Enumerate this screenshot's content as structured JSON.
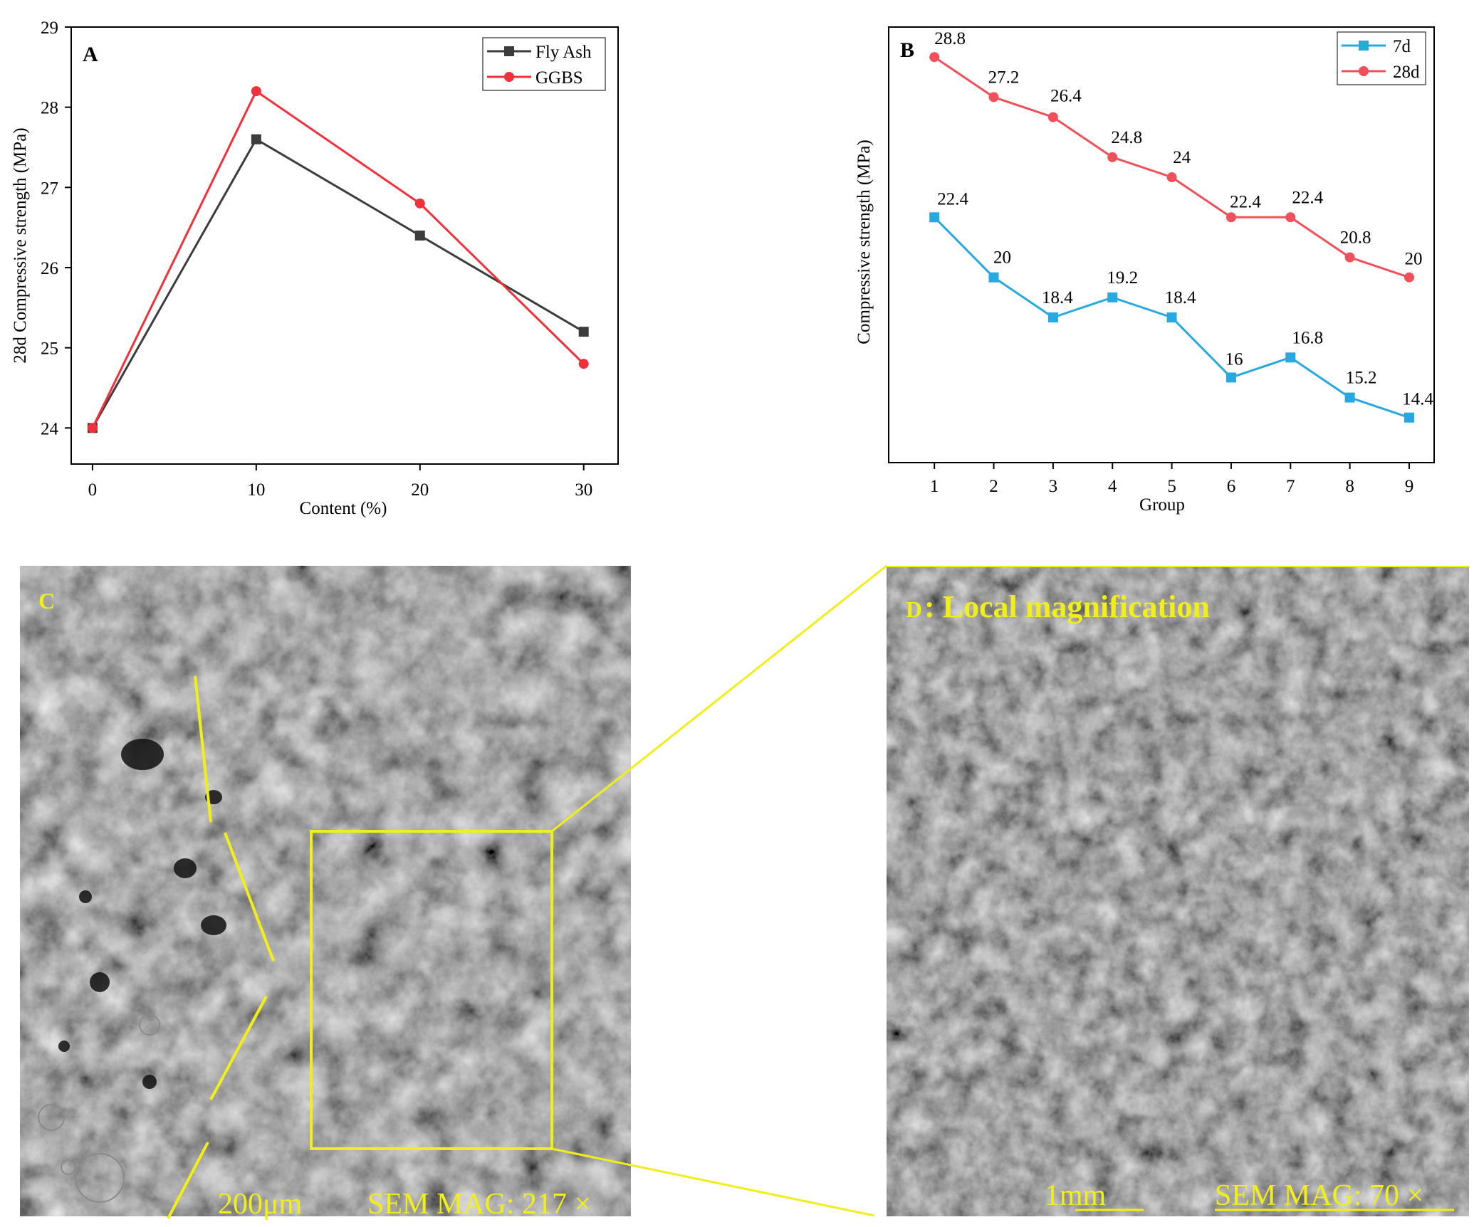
{
  "panels": {
    "a": {
      "letter": "A"
    },
    "b": {
      "letter": "B"
    },
    "c": {
      "letter": "C",
      "scale_bar": "200μm",
      "magnification": "SEM MAG: 217 ×"
    },
    "d": {
      "letter": "D",
      "title": ": Local magnification",
      "scale_bar": "1mm",
      "magnification": "SEM MAG: 70 ×"
    }
  },
  "colors": {
    "fly_ash": "#3c3c3c",
    "ggbs": "#f0303a",
    "d7": "#28a8e0",
    "d28": "#f0505a",
    "annotation": "#f2ee1a",
    "axis": "#000000"
  },
  "chart_data": [
    {
      "id": "A",
      "type": "line",
      "x": [
        0,
        10,
        20,
        30
      ],
      "xlabel": "Content (%)",
      "ylabel": "28d Compressive strength (MPa)",
      "xlim": [
        -1.3,
        32.1
      ],
      "ylim": [
        23.55,
        29
      ],
      "xticks": [
        0,
        10,
        20,
        30
      ],
      "yticks": [
        24,
        25,
        26,
        27,
        28,
        29
      ],
      "legend_position": "top-right",
      "grid": false,
      "series": [
        {
          "name": "Fly Ash",
          "values": [
            24.0,
            27.6,
            26.4,
            25.2
          ],
          "marker": "square",
          "color": "#3c3c3c"
        },
        {
          "name": "GGBS",
          "values": [
            24.0,
            28.2,
            26.8,
            24.8
          ],
          "marker": "circle",
          "color": "#f0303a"
        }
      ]
    },
    {
      "id": "B",
      "type": "line",
      "x": [
        1,
        2,
        3,
        4,
        5,
        6,
        7,
        8,
        9
      ],
      "xlabel": "Group",
      "ylabel": "Compressive strength (MPa)",
      "xlim": [
        0.23,
        9.42
      ],
      "ylim": [
        12.6,
        30
      ],
      "xticks": [
        1,
        2,
        3,
        4,
        5,
        6,
        7,
        8,
        9
      ],
      "yticks": [],
      "legend_position": "top-right",
      "grid": false,
      "data_labels": true,
      "series": [
        {
          "name": "7d",
          "values": [
            22.4,
            20,
            18.4,
            19.2,
            18.4,
            16,
            16.8,
            15.2,
            14.4
          ],
          "marker": "square",
          "color": "#28a8e0"
        },
        {
          "name": "28d",
          "values": [
            28.8,
            27.2,
            26.4,
            24.8,
            24,
            22.4,
            22.4,
            20.8,
            20
          ],
          "marker": "circle",
          "color": "#f0505a"
        }
      ]
    }
  ]
}
